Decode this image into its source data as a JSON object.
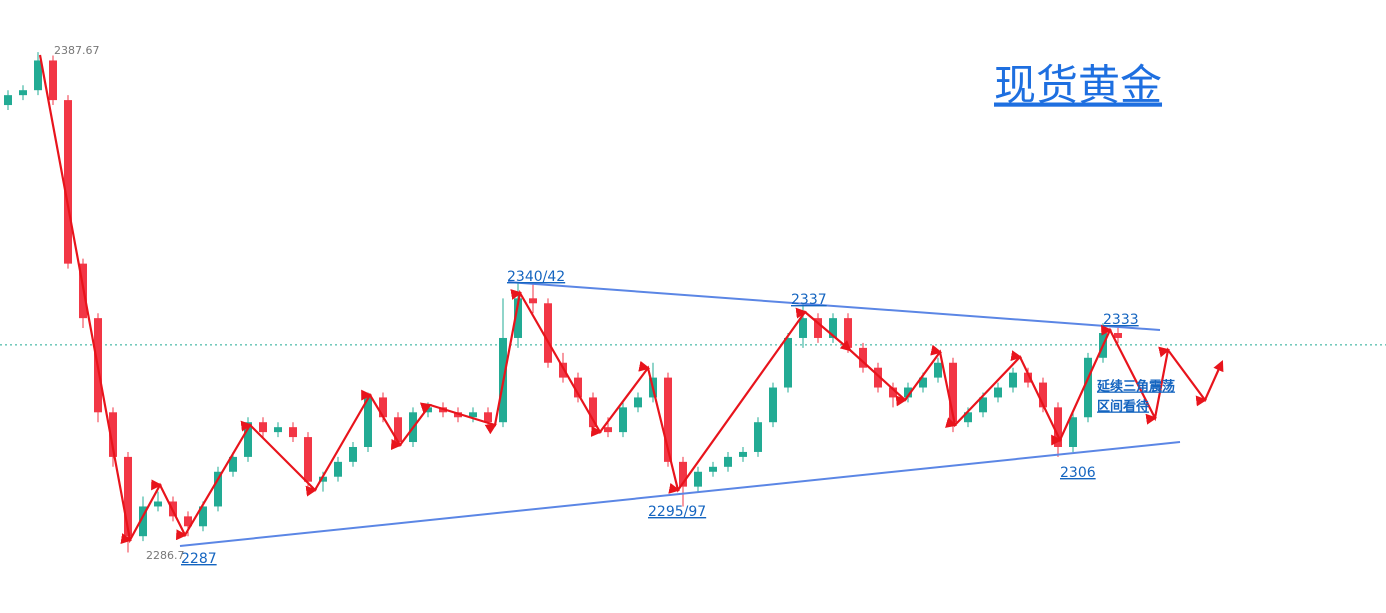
{
  "chart_data": {
    "type": "candlestick",
    "title": "现货黄金",
    "up_color": "#22ab94",
    "down_color": "#f23645",
    "ylim": [
      2274.5,
      2398.2
    ],
    "high_label": "2387.67",
    "low_label": "2286.7",
    "price_line": 2328.6,
    "annotations": [
      "2340/42",
      "2337",
      "2333",
      "2306",
      "2295/97",
      "2287"
    ],
    "note": [
      "延续三角震荡",
      "区间看待"
    ],
    "ohlc": [
      [
        2377,
        2380,
        2376,
        2379
      ],
      [
        2379,
        2381,
        2378,
        2380
      ],
      [
        2380,
        2387.67,
        2379,
        2386
      ],
      [
        2386,
        2387,
        2377,
        2378
      ],
      [
        2378,
        2379,
        2344,
        2345
      ],
      [
        2345,
        2346,
        2332,
        2334
      ],
      [
        2334,
        2335,
        2313,
        2315
      ],
      [
        2315,
        2316,
        2304,
        2306
      ],
      [
        2306,
        2307,
        2286.7,
        2290
      ],
      [
        2290,
        2298,
        2289,
        2296
      ],
      [
        2296,
        2299,
        2295,
        2297
      ],
      [
        2297,
        2298,
        2293,
        2294
      ],
      [
        2294,
        2295,
        2290,
        2292
      ],
      [
        2292,
        2297,
        2291,
        2296
      ],
      [
        2296,
        2304,
        2295,
        2303
      ],
      [
        2303,
        2307,
        2302,
        2306
      ],
      [
        2306,
        2314,
        2305,
        2313
      ],
      [
        2313,
        2314,
        2310,
        2311
      ],
      [
        2311,
        2313,
        2310,
        2312
      ],
      [
        2312,
        2313,
        2309,
        2310
      ],
      [
        2310,
        2311,
        2300,
        2301
      ],
      [
        2301,
        2303,
        2299,
        2302
      ],
      [
        2302,
        2306,
        2301,
        2305
      ],
      [
        2305,
        2309,
        2304,
        2308
      ],
      [
        2308,
        2319,
        2307,
        2318
      ],
      [
        2318,
        2319,
        2313,
        2314
      ],
      [
        2314,
        2315,
        2308,
        2309
      ],
      [
        2309,
        2316,
        2308,
        2315
      ],
      [
        2315,
        2317,
        2314,
        2316
      ],
      [
        2316,
        2317,
        2314,
        2315
      ],
      [
        2315,
        2316,
        2313,
        2314
      ],
      [
        2314,
        2316,
        2313,
        2315
      ],
      [
        2315,
        2316,
        2312,
        2313
      ],
      [
        2313,
        2338,
        2312,
        2330
      ],
      [
        2330,
        2341,
        2328,
        2338
      ],
      [
        2338,
        2341,
        2335,
        2337
      ],
      [
        2337,
        2338,
        2324,
        2325
      ],
      [
        2325,
        2327,
        2321,
        2322
      ],
      [
        2322,
        2323,
        2317,
        2318
      ],
      [
        2318,
        2319,
        2311,
        2312
      ],
      [
        2312,
        2314,
        2310,
        2311
      ],
      [
        2311,
        2317,
        2310,
        2316
      ],
      [
        2316,
        2319,
        2315,
        2318
      ],
      [
        2318,
        2325,
        2317,
        2322
      ],
      [
        2322,
        2323,
        2304,
        2305
      ],
      [
        2305,
        2306,
        2296,
        2300
      ],
      [
        2300,
        2304,
        2299,
        2303
      ],
      [
        2303,
        2305,
        2302,
        2304
      ],
      [
        2304,
        2307,
        2303,
        2306
      ],
      [
        2306,
        2308,
        2305,
        2307
      ],
      [
        2307,
        2314,
        2306,
        2313
      ],
      [
        2313,
        2321,
        2312,
        2320
      ],
      [
        2320,
        2331,
        2319,
        2330
      ],
      [
        2330,
        2337,
        2328,
        2334
      ],
      [
        2334,
        2335,
        2329,
        2330
      ],
      [
        2330,
        2335,
        2329,
        2334
      ],
      [
        2334,
        2335,
        2327,
        2328
      ],
      [
        2328,
        2329,
        2323,
        2324
      ],
      [
        2324,
        2325,
        2319,
        2320
      ],
      [
        2320,
        2321,
        2316,
        2318
      ],
      [
        2318,
        2321,
        2317,
        2320
      ],
      [
        2320,
        2323,
        2319,
        2322
      ],
      [
        2322,
        2326,
        2321,
        2325
      ],
      [
        2325,
        2326,
        2311,
        2313
      ],
      [
        2313,
        2316,
        2312,
        2315
      ],
      [
        2315,
        2319,
        2314,
        2318
      ],
      [
        2318,
        2321,
        2317,
        2320
      ],
      [
        2320,
        2324,
        2319,
        2323
      ],
      [
        2323,
        2324,
        2320,
        2321
      ],
      [
        2321,
        2322,
        2315,
        2316
      ],
      [
        2316,
        2317,
        2306,
        2308
      ],
      [
        2308,
        2315,
        2307,
        2314
      ],
      [
        2314,
        2327,
        2313,
        2326
      ],
      [
        2326,
        2333,
        2325,
        2331
      ],
      [
        2331,
        2332,
        2329,
        2330
      ]
    ]
  }
}
